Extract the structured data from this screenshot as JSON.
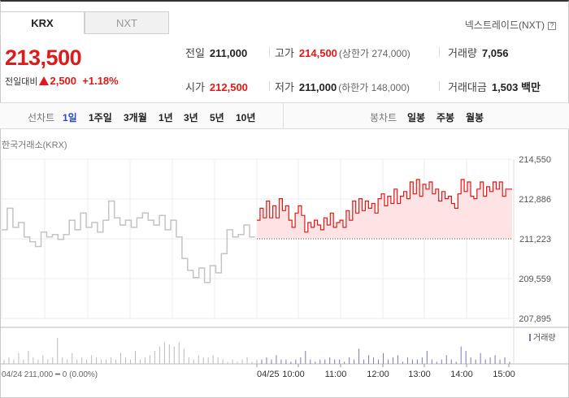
{
  "tabs": [
    {
      "label": "KRX",
      "active": true
    },
    {
      "label": "NXT",
      "active": false
    }
  ],
  "nxt_link": "넥스트레이드(NXT)",
  "nxt_help": "?",
  "price": "213,500",
  "change": {
    "label": "전일대비",
    "value": "2,500",
    "percent": "+1.18%",
    "direction": "up"
  },
  "stats": {
    "prev_close": {
      "label": "전일",
      "value": "211,000"
    },
    "high": {
      "label": "고가",
      "value": "214,500",
      "sub": "(상한가 274,000)"
    },
    "volume": {
      "label": "거래량",
      "value": "7,056"
    },
    "open": {
      "label": "시가",
      "value": "212,500"
    },
    "low": {
      "label": "저가",
      "value": "211,000",
      "sub": "(하한가 148,000)"
    },
    "amount": {
      "label": "거래대금",
      "value": "1,503 백만"
    }
  },
  "period_bar": {
    "line_label": "선차트",
    "line_periods": [
      "1일",
      "1주일",
      "3개월",
      "1년",
      "3년",
      "5년",
      "10년"
    ],
    "selected": "1일",
    "candle_label": "봉차트",
    "candle_periods": [
      "일봉",
      "주봉",
      "월봉"
    ]
  },
  "market_label": "한국거래소(KRX)",
  "colors": {
    "up": "#e0191a",
    "prev_line": "#c4c4c4",
    "fill": "#fde3e3",
    "volume": "#7a7ab0",
    "selected": "#2a4cb8"
  },
  "chart_data": {
    "type": "line",
    "ylim": [
      207895,
      214550
    ],
    "yticks": [
      "214,550",
      "212,886",
      "211,223",
      "209,559",
      "207,895"
    ],
    "baseline": 211223,
    "xtick_labels": [
      "04/25",
      "10:00",
      "11:00",
      "12:00",
      "13:00",
      "14:00",
      "15:00"
    ],
    "prev_day_summary": "04/24  211,000 ━ 0 (0.00%)",
    "volume_legend": "거래량",
    "series": [
      {
        "values": [
          211600,
          212500,
          211700,
          211900,
          211300,
          211100,
          210900,
          211500,
          211300,
          211400,
          211200,
          211400,
          212000,
          211600,
          212300,
          211700,
          211900,
          211500,
          212000,
          212800,
          212100,
          211800,
          212000,
          211700,
          212100,
          212300,
          212000,
          211800,
          212200,
          211600,
          212000,
          211300,
          210400,
          209900,
          209600,
          210000,
          209400,
          210100,
          209800,
          210600,
          211600,
          211300,
          211400,
          211800,
          211300
        ],
        "style": "prev-day"
      },
      {
        "values": [
          212000,
          212500,
          212100,
          212800,
          212100,
          212600,
          212100,
          212900,
          212400,
          212600,
          212000,
          211700,
          212300,
          212600,
          212200,
          211500,
          211900,
          211700,
          212000,
          211800,
          211600,
          212100,
          211800,
          212300,
          211700,
          211900,
          212000,
          211700,
          212400,
          212000,
          212800,
          212300,
          212900,
          212400,
          212800,
          212500,
          212700,
          212300,
          212900,
          213100,
          212600,
          213000,
          212700,
          213300,
          212700,
          213000,
          213200,
          212900,
          213600,
          213100,
          213700,
          213000,
          213500,
          213300,
          213600,
          213100,
          213300,
          212800,
          213200,
          212900,
          213000,
          212700,
          212500,
          213100,
          213700,
          213200,
          213600,
          213000,
          212900,
          213300,
          213600,
          213000,
          213400,
          213200,
          213600,
          213300,
          213600,
          213000,
          213300,
          213300
        ],
        "style": "today"
      }
    ],
    "volume": [
      2,
      3,
      2,
      5,
      2,
      6,
      3,
      2,
      4,
      2,
      3,
      12,
      3,
      2,
      5,
      2,
      3,
      2,
      4,
      3,
      2,
      2,
      3,
      2,
      5,
      3,
      2,
      6,
      2,
      3,
      4,
      6,
      8,
      10,
      9,
      8,
      10,
      7,
      3,
      2,
      4,
      3,
      3,
      4,
      3,
      2,
      1,
      2,
      1,
      2,
      3,
      1,
      2,
      2,
      3,
      2,
      4,
      2,
      2,
      1,
      2,
      3,
      6,
      2,
      1,
      2,
      2,
      3,
      2,
      2,
      1,
      3,
      2,
      7,
      2,
      4,
      3,
      2,
      5,
      2,
      3,
      4,
      1,
      3,
      2,
      2,
      3,
      6,
      2,
      1,
      2,
      4,
      2,
      1,
      8,
      6,
      3,
      2,
      5,
      2,
      3,
      4,
      2,
      3,
      1
    ]
  }
}
